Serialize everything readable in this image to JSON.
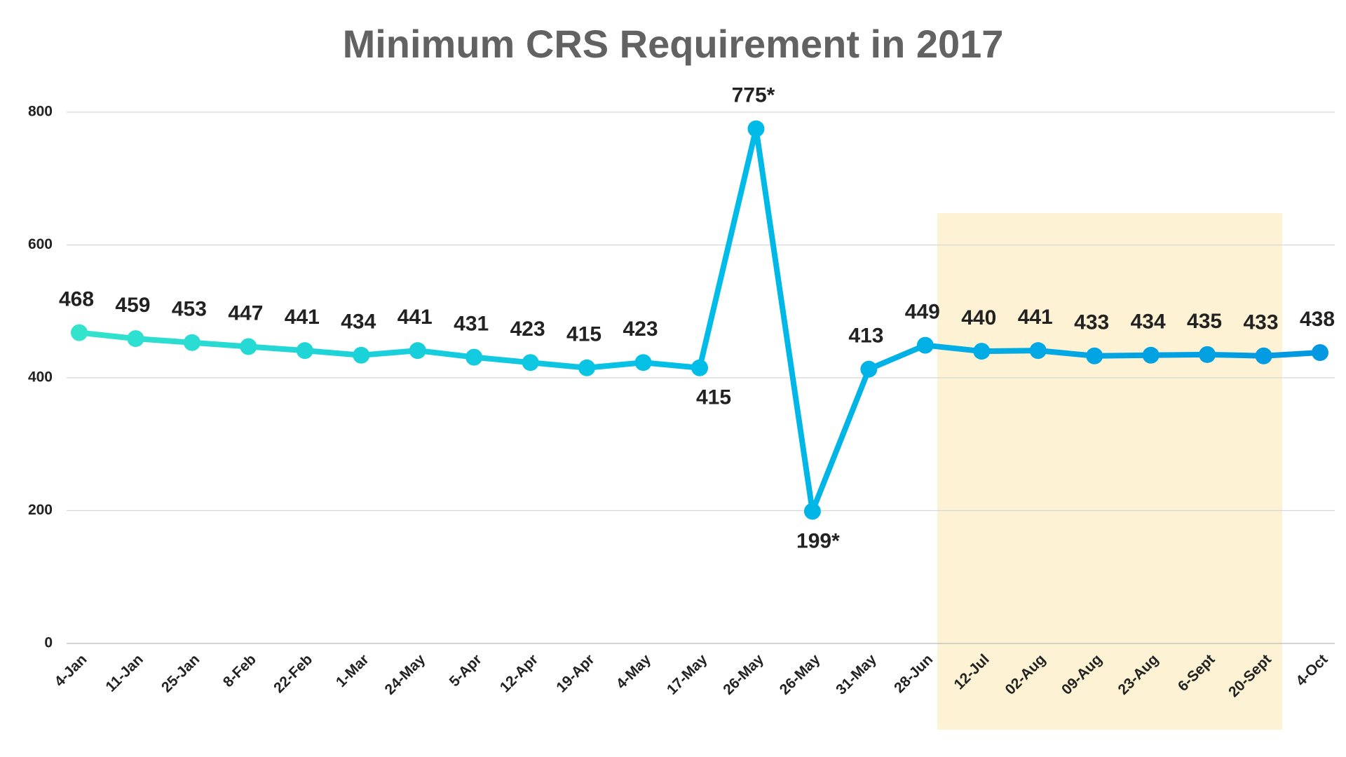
{
  "chart_data": {
    "type": "line",
    "title": "Minimum CRS Requirement in 2017",
    "categories": [
      "4-Jan",
      "11-Jan",
      "25-Jan",
      "8-Feb",
      "22-Feb",
      "1-Mar",
      "24-May",
      "5-Apr",
      "12-Apr",
      "19-Apr",
      "4-May",
      "17-May",
      "26-May",
      "26-May",
      "31-May",
      "28-Jun",
      "12-Jul",
      "02-Aug",
      "09-Aug",
      "23-Aug",
      "6-Sept",
      "20-Sept",
      "4-Oct"
    ],
    "series": [
      {
        "color": "#00bde8",
        "values": [
          468,
          459,
          453,
          447,
          441,
          434,
          441,
          431,
          423,
          415,
          423,
          415,
          775,
          199,
          413,
          449,
          440,
          441,
          433,
          434,
          435,
          433,
          438
        ],
        "value_labels": [
          "468",
          "459",
          "453",
          "447",
          "441",
          "434",
          "441",
          "431",
          "423",
          "415",
          "423",
          "415",
          "775*",
          "199*",
          "413",
          "449",
          "440",
          "441",
          "433",
          "434",
          "435",
          "433",
          "438"
        ]
      }
    ],
    "ylim": [
      0,
      800
    ],
    "yticks": [
      0,
      200,
      400,
      600,
      800
    ],
    "grid": true
  }
}
